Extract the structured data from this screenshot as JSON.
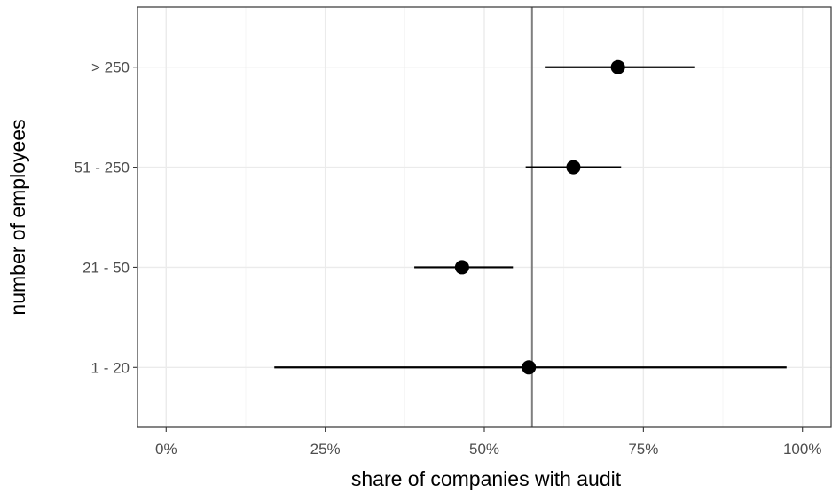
{
  "chart_data": {
    "type": "scatter",
    "subtype": "point-range",
    "title": "",
    "xlabel": "share of companies with audit",
    "ylabel": "number of employees",
    "xlim": [
      -0.045,
      1.045
    ],
    "x_ticks": [
      0,
      0.25,
      0.5,
      0.75,
      1.0
    ],
    "x_tick_labels": [
      "0%",
      "25%",
      "50%",
      "75%",
      "100%"
    ],
    "categories": [
      "1 - 20",
      "21 - 50",
      "51 - 250",
      "> 250"
    ],
    "points": [
      {
        "category": "1 - 20",
        "estimate": 0.57,
        "lower": 0.17,
        "upper": 0.975
      },
      {
        "category": "21 - 50",
        "estimate": 0.465,
        "lower": 0.39,
        "upper": 0.545
      },
      {
        "category": "51 - 250",
        "estimate": 0.64,
        "lower": 0.565,
        "upper": 0.715
      },
      {
        "category": "> 250",
        "estimate": 0.71,
        "lower": 0.595,
        "upper": 0.83
      }
    ],
    "reference_line": {
      "orientation": "vertical",
      "x": 0.575,
      "color": "#7f7f7f"
    },
    "grid": true,
    "legend": "none",
    "theme": "bw"
  }
}
